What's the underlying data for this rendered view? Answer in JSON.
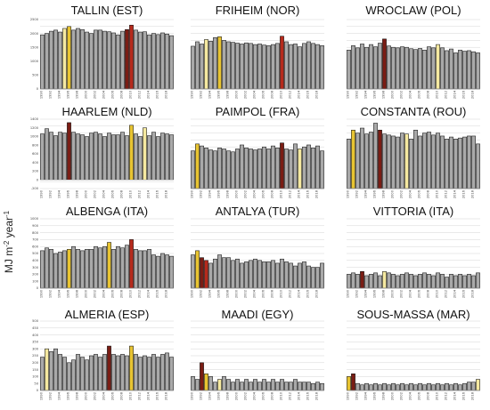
{
  "ylabel_base": "MJ m",
  "ylabel_sup1": "-2",
  "ylabel_mid": " year",
  "ylabel_sup2": "-1",
  "colors": {
    "bar": "#a9a9a9",
    "highlight_light": "#f5e9a0",
    "highlight_gold": "#e8c431",
    "highlight_darkred": "#7a1d14",
    "highlight_red": "#b62a1c",
    "grid": "#d4d4d4"
  },
  "chart_data": [
    {
      "type": "bar",
      "title": "TALLIN (EST)",
      "ylim": [
        0,
        2500
      ],
      "yticks": [
        0,
        500,
        1000,
        1500,
        2000,
        2500
      ],
      "x": [
        1990,
        1991,
        1992,
        1993,
        1994,
        1995,
        1996,
        1997,
        1998,
        1999,
        2000,
        2001,
        2002,
        2003,
        2004,
        2005,
        2006,
        2007,
        2008,
        2009,
        2010,
        2011,
        2012,
        2013,
        2014,
        2015,
        2016,
        2017,
        2018,
        2019
      ],
      "values": [
        1950,
        2000,
        2080,
        2120,
        2050,
        2180,
        2250,
        2120,
        2180,
        2140,
        2050,
        2000,
        2120,
        2120,
        2080,
        2060,
        2020,
        1950,
        2080,
        2140,
        2300,
        2120,
        2050,
        2060,
        1950,
        2000,
        1960,
        2020,
        1980,
        1920
      ],
      "highlights": {
        "1995": "highlight_light",
        "1996": "highlight_gold",
        "2009": "highlight_darkred",
        "2010": "highlight_red"
      }
    },
    {
      "type": "bar",
      "title": "FRIHEIM (NOR)",
      "ylim": [
        0,
        2500
      ],
      "yticks": [],
      "x": [
        1990,
        1991,
        1992,
        1993,
        1994,
        1995,
        1996,
        1997,
        1998,
        1999,
        2000,
        2001,
        2002,
        2003,
        2004,
        2005,
        2006,
        2007,
        2008,
        2009,
        2010,
        2011,
        2012,
        2013,
        2014,
        2015,
        2016,
        2017,
        2018,
        2019
      ],
      "values": [
        1540,
        1700,
        1620,
        1780,
        1720,
        1850,
        1880,
        1750,
        1700,
        1680,
        1650,
        1620,
        1660,
        1640,
        1600,
        1620,
        1580,
        1560,
        1600,
        1640,
        1900,
        1700,
        1600,
        1620,
        1520,
        1640,
        1700,
        1640,
        1600,
        1560
      ],
      "highlights": {
        "1993": "highlight_light",
        "1996": "highlight_gold",
        "2010": "highlight_red"
      }
    },
    {
      "type": "bar",
      "title": "WROCLAW (POL)",
      "ylim": [
        0,
        2500
      ],
      "yticks": [],
      "x": [
        1990,
        1991,
        1992,
        1993,
        1994,
        1995,
        1996,
        1997,
        1998,
        1999,
        2000,
        2001,
        2002,
        2003,
        2004,
        2005,
        2006,
        2007,
        2008,
        2009,
        2010,
        2011,
        2012,
        2013,
        2014,
        2015,
        2016,
        2017,
        2018,
        2019
      ],
      "values": [
        1400,
        1560,
        1480,
        1620,
        1500,
        1600,
        1520,
        1650,
        1800,
        1550,
        1500,
        1480,
        1520,
        1500,
        1450,
        1420,
        1460,
        1400,
        1520,
        1480,
        1600,
        1480,
        1380,
        1440,
        1300,
        1400,
        1360,
        1380,
        1340,
        1300
      ],
      "highlights": {
        "1998": "highlight_darkred",
        "2010": "highlight_light"
      }
    },
    {
      "type": "bar",
      "title": "HAARLEM (NLD)",
      "ylim": [
        -200,
        1400
      ],
      "yticks": [
        -200,
        0,
        200,
        400,
        600,
        800,
        1000,
        1200,
        1400
      ],
      "x": [
        1990,
        1991,
        1992,
        1993,
        1994,
        1995,
        1996,
        1997,
        1998,
        1999,
        2000,
        2001,
        2002,
        2003,
        2004,
        2005,
        2006,
        2007,
        2008,
        2009,
        2010,
        2011,
        2012,
        2013,
        2014,
        2015,
        2016,
        2017,
        2018,
        2019
      ],
      "values": [
        1060,
        1180,
        1100,
        1020,
        1100,
        1080,
        1320,
        1100,
        1060,
        1040,
        1000,
        1080,
        1100,
        1060,
        1000,
        1080,
        1040,
        1040,
        1100,
        1020,
        1260,
        1060,
        1000,
        1200,
        1020,
        1100,
        1000,
        1080,
        1060,
        1040
      ],
      "highlights": {
        "1996": "highlight_darkred",
        "2010": "highlight_gold",
        "2013": "highlight_light"
      }
    },
    {
      "type": "bar",
      "title": "PAIMPOL (FRA)",
      "ylim": [
        0,
        1400
      ],
      "yticks": [],
      "x": [
        1990,
        1991,
        1992,
        1993,
        1994,
        1995,
        1996,
        1997,
        1998,
        1999,
        2000,
        2001,
        2002,
        2003,
        2004,
        2005,
        2006,
        2007,
        2008,
        2009,
        2010,
        2011,
        2012,
        2013,
        2014,
        2015,
        2016,
        2017,
        2018,
        2019
      ],
      "values": [
        760,
        900,
        860,
        820,
        780,
        760,
        820,
        800,
        760,
        740,
        800,
        880,
        820,
        800,
        780,
        800,
        840,
        800,
        860,
        820,
        920,
        800,
        780,
        900,
        800,
        840,
        880,
        820,
        860,
        760
      ],
      "highlights": {
        "1991": "highlight_gold",
        "2010": "highlight_darkred",
        "2014": "highlight_light"
      }
    },
    {
      "type": "bar",
      "title": "CONSTANTA (ROU)",
      "ylim": [
        0,
        1400
      ],
      "yticks": [],
      "x": [
        1990,
        1991,
        1992,
        1993,
        1994,
        1995,
        1996,
        1997,
        1998,
        1999,
        2000,
        2001,
        2002,
        2003,
        2004,
        2005,
        2006,
        2007,
        2008,
        2009,
        2010,
        2011,
        2012,
        2013,
        2014,
        2015,
        2016,
        2017,
        2018,
        2019
      ],
      "values": [
        1000,
        1180,
        1120,
        1220,
        1100,
        1140,
        1320,
        1180,
        1100,
        1080,
        1060,
        1040,
        1120,
        1100,
        1000,
        1180,
        1060,
        1120,
        1140,
        1080,
        1120,
        1060,
        1000,
        1040,
        1000,
        1020,
        1040,
        1060,
        1060,
        900
      ],
      "highlights": {
        "1991": "highlight_gold",
        "1997": "highlight_darkred",
        "2003": "highlight_light"
      }
    },
    {
      "type": "bar",
      "title": "ALBENGA (ITA)",
      "ylim": [
        0,
        1000
      ],
      "yticks": [
        0,
        100,
        200,
        300,
        400,
        500,
        600,
        700,
        800,
        900,
        1000
      ],
      "x": [
        1990,
        1991,
        1992,
        1993,
        1994,
        1995,
        1996,
        1997,
        1998,
        1999,
        2000,
        2001,
        2002,
        2003,
        2004,
        2005,
        2006,
        2007,
        2008,
        2009,
        2010,
        2011,
        2012,
        2013,
        2014,
        2015,
        2016,
        2017,
        2018,
        2019
      ],
      "values": [
        540,
        580,
        560,
        500,
        520,
        540,
        560,
        600,
        560,
        540,
        560,
        560,
        600,
        580,
        600,
        660,
        560,
        600,
        580,
        620,
        700,
        560,
        540,
        540,
        560,
        480,
        460,
        500,
        480,
        460
      ],
      "highlights": {
        "1996": "highlight_gold",
        "2005": "highlight_gold",
        "2010": "highlight_red"
      }
    },
    {
      "type": "bar",
      "title": "ANTALYA (TUR)",
      "ylim": [
        0,
        1000
      ],
      "yticks": [],
      "x": [
        1990,
        1991,
        1992,
        1993,
        1994,
        1995,
        1996,
        1997,
        1998,
        1999,
        2000,
        2001,
        2002,
        2003,
        2004,
        2005,
        2006,
        2007,
        2008,
        2009,
        2010,
        2011,
        2012,
        2013,
        2014,
        2015,
        2016,
        2017,
        2018,
        2019
      ],
      "values": [
        480,
        540,
        440,
        400,
        360,
        420,
        480,
        440,
        440,
        400,
        420,
        360,
        380,
        400,
        420,
        400,
        380,
        380,
        400,
        360,
        420,
        380,
        360,
        320,
        360,
        380,
        320,
        300,
        300,
        360
      ],
      "highlights": {
        "1991": "highlight_gold",
        "1992": "highlight_darkred",
        "1993": "highlight_red"
      }
    },
    {
      "type": "bar",
      "title": "VITTORIA (ITA)",
      "ylim": [
        0,
        1000
      ],
      "yticks": [],
      "x": [
        1990,
        1991,
        1992,
        1993,
        1994,
        1995,
        1996,
        1997,
        1998,
        1999,
        2000,
        2001,
        2002,
        2003,
        2004,
        2005,
        2006,
        2007,
        2008,
        2009,
        2010,
        2011,
        2012,
        2013,
        2014,
        2015,
        2016,
        2017,
        2018,
        2019
      ],
      "values": [
        200,
        220,
        200,
        240,
        180,
        200,
        220,
        180,
        240,
        220,
        200,
        180,
        200,
        220,
        200,
        180,
        200,
        220,
        200,
        180,
        220,
        200,
        160,
        200,
        180,
        200,
        180,
        200,
        180,
        220
      ],
      "highlights": {
        "1993": "highlight_darkred",
        "1998": "highlight_light"
      }
    },
    {
      "type": "bar",
      "title": "ALMERIA (ESP)",
      "ylim": [
        0,
        500
      ],
      "yticks": [
        0,
        50,
        100,
        150,
        200,
        250,
        300,
        350,
        400,
        450,
        500
      ],
      "x": [
        1990,
        1991,
        1992,
        1993,
        1994,
        1995,
        1996,
        1997,
        1998,
        1999,
        2000,
        2001,
        2002,
        2003,
        2004,
        2005,
        2006,
        2007,
        2008,
        2009,
        2010,
        2011,
        2012,
        2013,
        2014,
        2015,
        2016,
        2017,
        2018,
        2019
      ],
      "values": [
        240,
        300,
        280,
        300,
        260,
        240,
        200,
        220,
        260,
        240,
        220,
        250,
        260,
        240,
        260,
        320,
        260,
        250,
        260,
        250,
        320,
        260,
        240,
        250,
        240,
        260,
        240,
        260,
        270,
        240
      ],
      "highlights": {
        "1991": "highlight_light",
        "2005": "highlight_darkred",
        "2010": "highlight_gold"
      }
    },
    {
      "type": "bar",
      "title": "MAADI (EGY)",
      "ylim": [
        0,
        500
      ],
      "yticks": [],
      "x": [
        1990,
        1991,
        1992,
        1993,
        1994,
        1995,
        1996,
        1997,
        1998,
        1999,
        2000,
        2001,
        2002,
        2003,
        2004,
        2005,
        2006,
        2007,
        2008,
        2009,
        2010,
        2011,
        2012,
        2013,
        2014,
        2015,
        2016,
        2017,
        2018,
        2019
      ],
      "values": [
        100,
        80,
        200,
        120,
        100,
        60,
        80,
        100,
        80,
        60,
        80,
        60,
        80,
        60,
        80,
        60,
        80,
        60,
        80,
        60,
        80,
        60,
        60,
        80,
        60,
        60,
        60,
        50,
        60,
        50
      ],
      "highlights": {
        "1992": "highlight_darkred",
        "1993": "highlight_gold",
        "1996": "highlight_light"
      }
    },
    {
      "type": "bar",
      "title": "SOUS-MASSA (MAR)",
      "ylim": [
        0,
        500
      ],
      "yticks": [],
      "x": [
        1990,
        1991,
        1992,
        1993,
        1994,
        1995,
        1996,
        1997,
        1998,
        1999,
        2000,
        2001,
        2002,
        2003,
        2004,
        2005,
        2006,
        2007,
        2008,
        2009,
        2010,
        2011,
        2012,
        2013,
        2014,
        2015,
        2016,
        2017,
        2018,
        2019
      ],
      "values": [
        100,
        120,
        50,
        40,
        50,
        40,
        50,
        40,
        50,
        40,
        50,
        40,
        50,
        40,
        50,
        40,
        50,
        40,
        50,
        40,
        50,
        40,
        50,
        40,
        50,
        40,
        50,
        60,
        60,
        80
      ],
      "highlights": {
        "1990": "highlight_gold",
        "1991": "highlight_darkred",
        "2019": "highlight_light"
      }
    }
  ]
}
